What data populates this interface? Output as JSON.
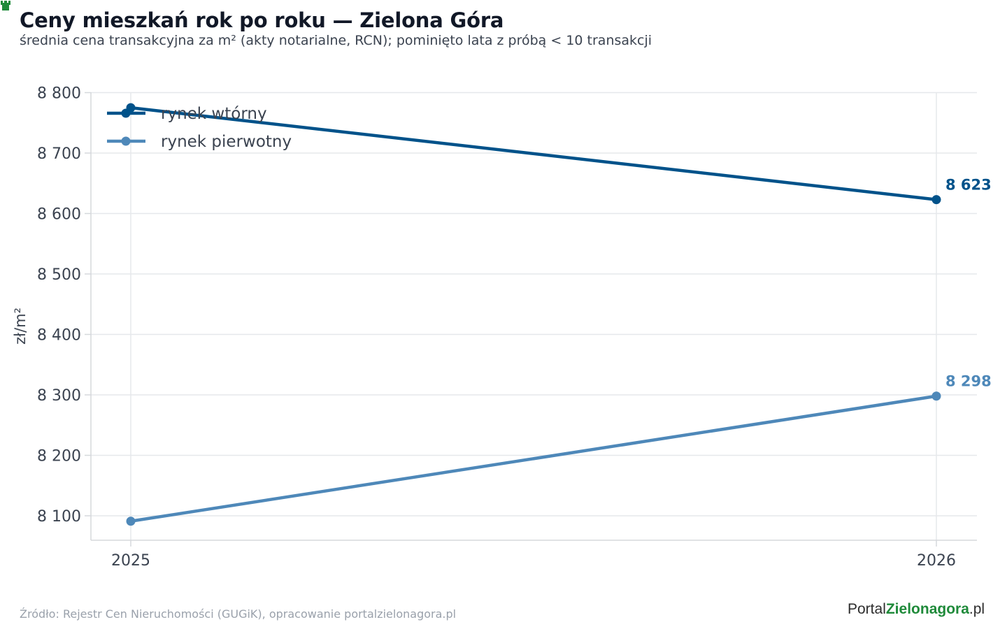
{
  "header": {
    "title": "Ceny mieszkań rok po roku — Zielona Góra",
    "subtitle": "średnia cena transakcyjna za m² (akty notarialne, RCN); pominięto lata z próbą < 10 transakcji"
  },
  "footer": {
    "source": "Źródło: Rejestr Cen Nieruchomości (GUGiK), opracowanie portalzielonagora.pl",
    "logo_part1": "Portal",
    "logo_part2": "Zielonagora",
    "logo_part3": ".pl"
  },
  "chart_data": {
    "type": "line",
    "x": [
      "2025",
      "2026"
    ],
    "ylabel": "zł/m²",
    "ylim": [
      8060,
      8800
    ],
    "yticks": [
      8100,
      8200,
      8300,
      8400,
      8500,
      8600,
      8700,
      8800
    ],
    "ytick_labels": [
      "8 100",
      "8 200",
      "8 300",
      "8 400",
      "8 500",
      "8 600",
      "8 700",
      "8 800"
    ],
    "grid": true,
    "legend_position": "top-left",
    "series": [
      {
        "name": "rynek wtórny",
        "values": [
          8775,
          8623
        ],
        "end_label": "8 623",
        "color": "#00528a"
      },
      {
        "name": "rynek pierwotny",
        "values": [
          8091,
          8298
        ],
        "end_label": "8 298",
        "color": "#4e88b9"
      }
    ]
  }
}
